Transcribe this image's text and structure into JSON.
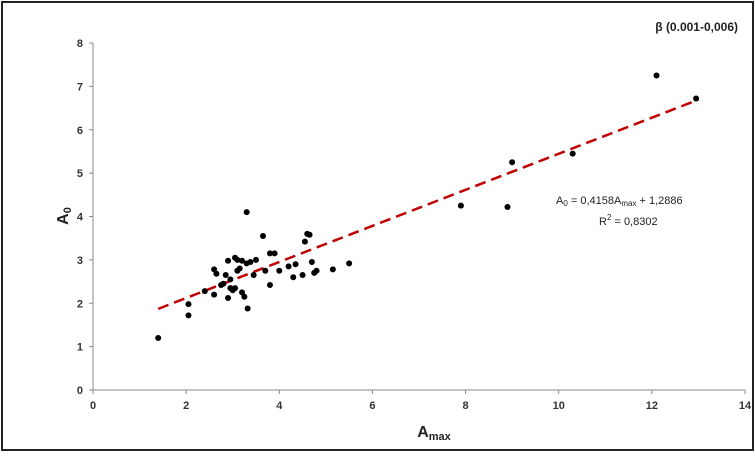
{
  "chart_data": {
    "type": "scatter",
    "title": "",
    "subtitle": "β (0.001-0,006)",
    "xlabel": {
      "main": "A",
      "sub": "max"
    },
    "ylabel": {
      "main": "A",
      "sub": "0"
    },
    "xlim": [
      0,
      14
    ],
    "ylim": [
      0,
      8
    ],
    "xticks": [
      "0",
      "2",
      "4",
      "6",
      "8",
      "10",
      "12",
      "14"
    ],
    "yticks": [
      "0",
      "1",
      "2",
      "3",
      "4",
      "5",
      "6",
      "7",
      "8"
    ],
    "grid": false,
    "colors": {
      "points": "#000000",
      "trendline": "#c00000",
      "axes": "#888888",
      "border": "#222222"
    },
    "series": [
      {
        "points": [
          [
            1.4,
            1.2
          ],
          [
            2.05,
            1.72
          ],
          [
            2.05,
            1.98
          ],
          [
            2.4,
            2.28
          ],
          [
            2.6,
            2.2
          ],
          [
            2.6,
            2.78
          ],
          [
            2.65,
            2.68
          ],
          [
            2.75,
            2.42
          ],
          [
            2.8,
            2.45
          ],
          [
            2.85,
            2.65
          ],
          [
            2.9,
            2.12
          ],
          [
            2.9,
            2.98
          ],
          [
            2.95,
            2.35
          ],
          [
            2.95,
            2.55
          ],
          [
            3.0,
            2.3
          ],
          [
            3.05,
            3.05
          ],
          [
            3.05,
            2.35
          ],
          [
            3.1,
            2.75
          ],
          [
            3.1,
            3.0
          ],
          [
            3.15,
            2.8
          ],
          [
            3.2,
            2.98
          ],
          [
            3.2,
            2.25
          ],
          [
            3.25,
            2.15
          ],
          [
            3.3,
            2.92
          ],
          [
            3.3,
            4.1
          ],
          [
            3.32,
            1.88
          ],
          [
            3.38,
            2.95
          ],
          [
            3.45,
            2.65
          ],
          [
            3.5,
            3.0
          ],
          [
            3.65,
            3.55
          ],
          [
            3.7,
            2.75
          ],
          [
            3.8,
            2.42
          ],
          [
            3.8,
            3.15
          ],
          [
            3.9,
            3.15
          ],
          [
            4.0,
            2.75
          ],
          [
            4.2,
            2.85
          ],
          [
            4.3,
            2.6
          ],
          [
            4.35,
            2.9
          ],
          [
            4.5,
            2.65
          ],
          [
            4.55,
            3.42
          ],
          [
            4.6,
            3.6
          ],
          [
            4.65,
            3.58
          ],
          [
            4.7,
            2.95
          ],
          [
            4.75,
            2.7
          ],
          [
            4.8,
            2.75
          ],
          [
            5.15,
            2.78
          ],
          [
            5.5,
            2.92
          ],
          [
            7.9,
            4.25
          ],
          [
            8.9,
            4.22
          ],
          [
            9.0,
            5.25
          ],
          [
            10.3,
            5.45
          ],
          [
            12.1,
            7.25
          ],
          [
            12.95,
            6.72
          ]
        ]
      }
    ],
    "trendline": {
      "slope": 0.4158,
      "intercept": 1.2886,
      "x_range": [
        1.4,
        13.0
      ],
      "style": "dashed"
    },
    "annotations": {
      "equation": {
        "lhs_main": "A",
        "lhs_sub": "0",
        "mid": " = 0,4158A",
        "mid_sub": "max",
        "rhs": " + 1,2886"
      },
      "r2": {
        "main": "R",
        "sup": "2",
        "rest": " = 0,8302"
      }
    }
  }
}
